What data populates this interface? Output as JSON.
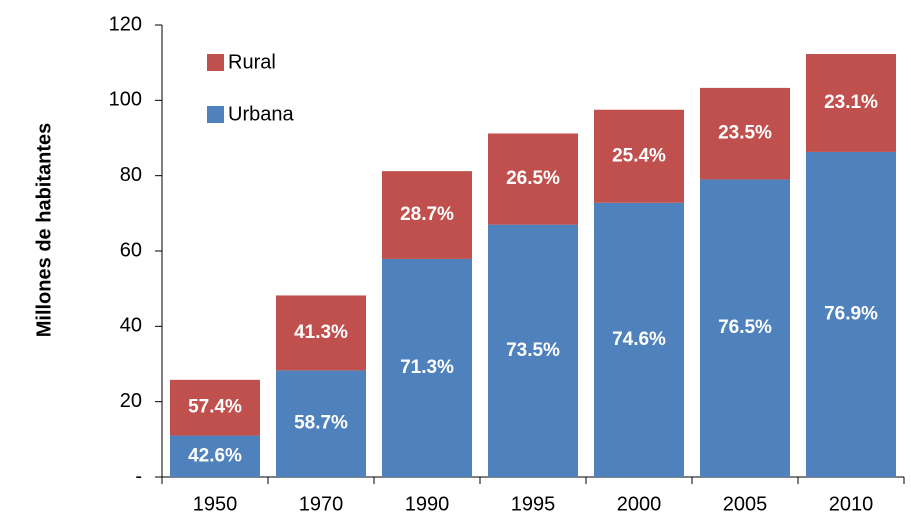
{
  "chart_data": {
    "type": "stacked_bar",
    "y_label": "Millones de habitantes",
    "categories": [
      "1950",
      "1970",
      "1990",
      "1995",
      "2000",
      "2005",
      "2010"
    ],
    "series": [
      {
        "name": "Urbana",
        "color": "#4f81bd",
        "values": [
          11.0,
          28.3,
          57.9,
          67.0,
          72.8,
          79.0,
          86.3
        ],
        "segment_labels": [
          "42.6%",
          "58.7%",
          "71.3%",
          "73.5%",
          "74.6%",
          "76.5%",
          "76.9%"
        ]
      },
      {
        "name": "Rural",
        "color": "#c0504d",
        "values": [
          14.8,
          19.9,
          23.3,
          24.2,
          24.7,
          24.3,
          26.0
        ],
        "segment_labels": [
          "57.4%",
          "41.3%",
          "28.7%",
          "26.5%",
          "25.4%",
          "23.5%",
          "23.1%"
        ]
      }
    ],
    "ylim": [
      0,
      120
    ],
    "yticks": [
      {
        "value": 0,
        "label": "-"
      },
      20,
      40,
      60,
      80,
      100,
      120
    ],
    "legend": "top-left"
  }
}
